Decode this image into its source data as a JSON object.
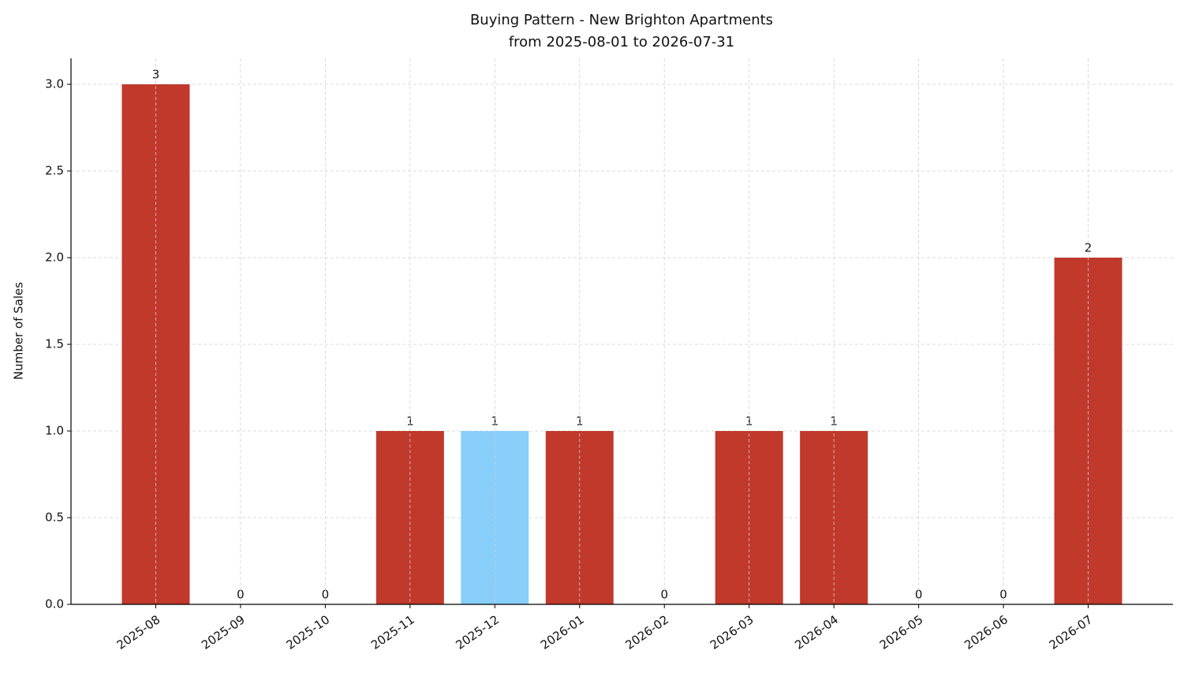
{
  "chart_data": {
    "type": "bar",
    "title": "Buying Pattern - New Brighton Apartments",
    "subtitle": "from 2025-08-01 to 2026-07-31",
    "y_label": "Number of Sales",
    "categories": [
      "2025-08",
      "2025-09",
      "2025-10",
      "2025-11",
      "2025-12",
      "2026-01",
      "2026-02",
      "2026-03",
      "2026-04",
      "2026-05",
      "2026-06",
      "2026-07"
    ],
    "values": [
      3,
      0,
      0,
      1,
      1,
      1,
      0,
      1,
      1,
      0,
      0,
      2
    ],
    "colors": [
      "#c0392b",
      "#c0392b",
      "#c0392b",
      "#c0392b",
      "#87cefa",
      "#c0392b",
      "#c0392b",
      "#c0392b",
      "#c0392b",
      "#c0392b",
      "#c0392b",
      "#c0392b"
    ],
    "ylim": [
      0,
      3.15
    ],
    "yticks": [
      {
        "value": 0,
        "label": "0.0"
      },
      {
        "value": 0.5,
        "label": "0.5"
      },
      {
        "value": 1,
        "label": "1.0"
      },
      {
        "value": 1.5,
        "label": "1.5"
      },
      {
        "value": 2,
        "label": "2.0"
      },
      {
        "value": 2.5,
        "label": "2.5"
      },
      {
        "value": 3,
        "label": "3.0"
      }
    ],
    "grid": true
  }
}
